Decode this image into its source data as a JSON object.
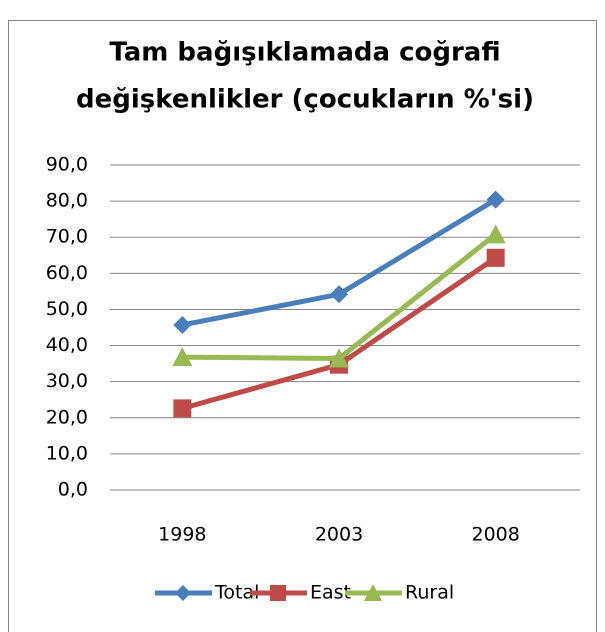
{
  "chart_data": {
    "type": "line",
    "title": [
      "Tam bağışıklamada coğrafi",
      "değişkenlikler (çocukların %'si)"
    ],
    "categories": [
      "1998",
      "2003",
      "2008"
    ],
    "series": [
      {
        "name": "Total",
        "color": "#4a7ebb",
        "marker": "diamond",
        "values": [
          45.7,
          54.2,
          80.4
        ]
      },
      {
        "name": "East",
        "color": "#be4b48",
        "marker": "square",
        "values": [
          22.6,
          34.7,
          64.3
        ]
      },
      {
        "name": "Rural",
        "color": "#98b954",
        "marker": "triangle",
        "values": [
          36.8,
          36.4,
          70.8
        ]
      }
    ],
    "ylim": [
      0,
      90
    ],
    "yticks": [
      {
        "value": 0,
        "label": "0,0"
      },
      {
        "value": 10,
        "label": "10,0"
      },
      {
        "value": 20,
        "label": "20,0"
      },
      {
        "value": 30,
        "label": "30,0"
      },
      {
        "value": 40,
        "label": "40,0"
      },
      {
        "value": 50,
        "label": "50,0"
      },
      {
        "value": 60,
        "label": "60,0"
      },
      {
        "value": 70,
        "label": "70,0"
      },
      {
        "value": 80,
        "label": "80,0"
      },
      {
        "value": 90,
        "label": "90,0"
      }
    ],
    "grid": true,
    "legend": "bottom"
  }
}
